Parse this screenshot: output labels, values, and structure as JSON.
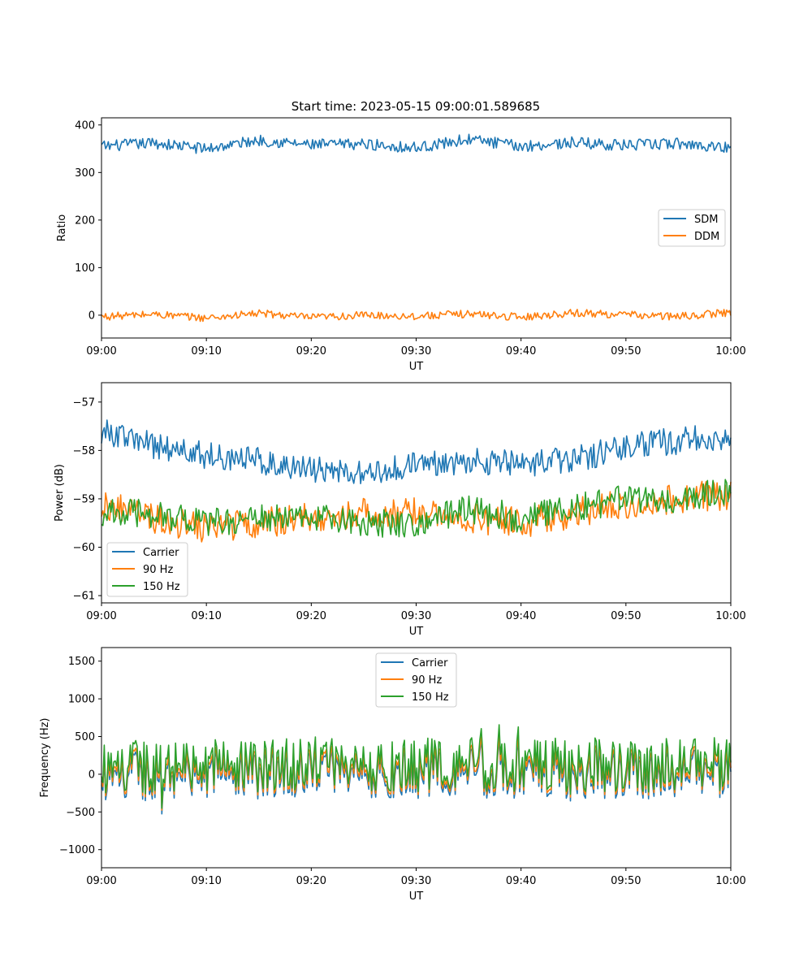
{
  "title": "Start time: 2023-05-15 09:00:01.589685",
  "chart_data": [
    {
      "type": "line",
      "xlabel": "UT",
      "ylabel": "Ratio",
      "x_range": [
        "09:00",
        "10:00"
      ],
      "x_ticks": [
        "09:00",
        "09:10",
        "09:20",
        "09:30",
        "09:40",
        "09:50",
        "10:00"
      ],
      "ylim": [
        -48,
        415
      ],
      "y_ticks": [
        400,
        300,
        200,
        100,
        0
      ],
      "legend": "center-right",
      "series": [
        {
          "name": "SDM",
          "color": "#1f77b4",
          "sample_interval_min": 5,
          "values": [
            355,
            362,
            350,
            368,
            358,
            360,
            352,
            370,
            355,
            363,
            357,
            361,
            352
          ]
        },
        {
          "name": "DDM",
          "color": "#ff7f0e",
          "sample_interval_min": 5,
          "values": [
            -3,
            2,
            -6,
            4,
            -5,
            0,
            -2,
            3,
            -4,
            5,
            1,
            -3,
            6
          ]
        }
      ]
    },
    {
      "type": "line",
      "xlabel": "UT",
      "ylabel": "Power (dB)",
      "x_range": [
        "09:00",
        "10:00"
      ],
      "x_ticks": [
        "09:00",
        "09:10",
        "09:20",
        "09:30",
        "09:40",
        "09:50",
        "10:00"
      ],
      "ylim": [
        -61.15,
        -56.6
      ],
      "y_ticks": [
        -57,
        -58,
        -59,
        -60,
        -61
      ],
      "legend": "lower-left",
      "series": [
        {
          "name": "Carrier",
          "color": "#1f77b4",
          "sample_interval_min": 5,
          "values": [
            -57.6,
            -57.9,
            -58.1,
            -58.2,
            -58.4,
            -58.5,
            -58.3,
            -58.2,
            -58.3,
            -58.2,
            -57.9,
            -57.8,
            -57.7
          ]
        },
        {
          "name": "90 Hz",
          "color": "#ff7f0e",
          "sample_interval_min": 5,
          "values": [
            -59.1,
            -59.4,
            -59.6,
            -59.5,
            -59.4,
            -59.3,
            -59.3,
            -59.4,
            -59.5,
            -59.3,
            -59.1,
            -59.0,
            -58.9
          ]
        },
        {
          "name": "150 Hz",
          "color": "#2ca02c",
          "sample_interval_min": 5,
          "values": [
            -59.3,
            -59.3,
            -59.5,
            -59.4,
            -59.4,
            -59.5,
            -59.5,
            -59.2,
            -59.4,
            -59.2,
            -59.0,
            -59.0,
            -58.8
          ]
        }
      ]
    },
    {
      "type": "line",
      "xlabel": "UT",
      "ylabel": "Frequency (Hz)",
      "x_range": [
        "09:00",
        "10:00"
      ],
      "x_ticks": [
        "09:00",
        "09:10",
        "09:20",
        "09:30",
        "09:40",
        "09:50",
        "10:00"
      ],
      "ylim": [
        -1240,
        1680
      ],
      "y_ticks": [
        1500,
        1000,
        500,
        0,
        -500,
        -1000
      ],
      "legend": "upper-center",
      "series": [
        {
          "name": "Carrier",
          "color": "#1f77b4",
          "sample_interval_min": 5,
          "values": [
            -20,
            -40,
            10,
            -30,
            20,
            -10,
            0,
            30,
            -20,
            10,
            -10,
            20,
            0
          ]
        },
        {
          "name": "90 Hz",
          "color": "#ff7f0e",
          "sample_interval_min": 5,
          "values": [
            30,
            10,
            60,
            20,
            70,
            40,
            50,
            80,
            30,
            60,
            40,
            70,
            50
          ]
        },
        {
          "name": "150 Hz",
          "color": "#2ca02c",
          "sample_interval_min": 5,
          "values": [
            100,
            80,
            130,
            90,
            140,
            110,
            120,
            150,
            100,
            130,
            110,
            140,
            120
          ]
        }
      ]
    }
  ]
}
